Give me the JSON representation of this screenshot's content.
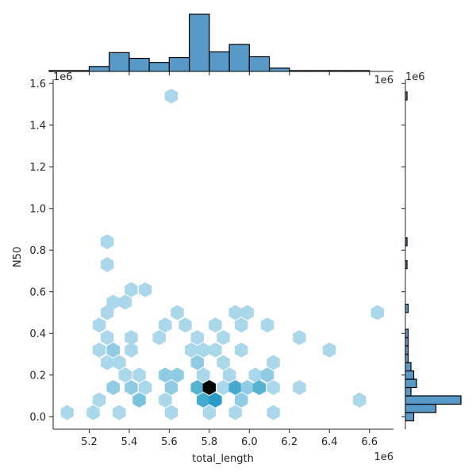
{
  "chart_data": {
    "type": "hexbin",
    "xlabel": "total_length",
    "ylabel": "N50",
    "x_offset": "1e6",
    "y_offset": "1e6",
    "xlim": [
      5.02,
      6.72
    ],
    "ylim": [
      -0.06,
      1.62
    ],
    "xticks": [
      "5.2",
      "5.4",
      "5.6",
      "5.8",
      "6.0",
      "6.2",
      "6.4",
      "6.6"
    ],
    "yticks": [
      "0.0",
      "0.2",
      "0.4",
      "0.6",
      "0.8",
      "1.0",
      "1.2",
      "1.4",
      "1.6"
    ],
    "hex_color": "#1f77b4",
    "hexbins": [
      {
        "x": 5.09,
        "y": 0.02,
        "c": 1
      },
      {
        "x": 5.22,
        "y": 0.02,
        "c": 1
      },
      {
        "x": 5.35,
        "y": 0.02,
        "c": 1
      },
      {
        "x": 5.61,
        "y": 0.02,
        "c": 1
      },
      {
        "x": 5.8,
        "y": 0.02,
        "c": 1
      },
      {
        "x": 5.93,
        "y": 0.02,
        "c": 1
      },
      {
        "x": 6.12,
        "y": 0.02,
        "c": 1
      },
      {
        "x": 5.25,
        "y": 0.08,
        "c": 1
      },
      {
        "x": 5.45,
        "y": 0.08,
        "c": 3
      },
      {
        "x": 5.58,
        "y": 0.08,
        "c": 1
      },
      {
        "x": 5.77,
        "y": 0.08,
        "c": 6
      },
      {
        "x": 5.83,
        "y": 0.08,
        "c": 8
      },
      {
        "x": 5.96,
        "y": 0.08,
        "c": 2
      },
      {
        "x": 6.55,
        "y": 0.08,
        "c": 1
      },
      {
        "x": 5.32,
        "y": 0.14,
        "c": 2
      },
      {
        "x": 5.41,
        "y": 0.14,
        "c": 2
      },
      {
        "x": 5.48,
        "y": 0.14,
        "c": 1
      },
      {
        "x": 5.61,
        "y": 0.14,
        "c": 2
      },
      {
        "x": 5.74,
        "y": 0.14,
        "c": 5
      },
      {
        "x": 5.8,
        "y": 0.14,
        "c": 12
      },
      {
        "x": 5.87,
        "y": 0.14,
        "c": 1
      },
      {
        "x": 5.93,
        "y": 0.14,
        "c": 6
      },
      {
        "x": 5.99,
        "y": 0.14,
        "c": 2
      },
      {
        "x": 6.05,
        "y": 0.14,
        "c": 5
      },
      {
        "x": 6.12,
        "y": 0.14,
        "c": 1
      },
      {
        "x": 6.25,
        "y": 0.14,
        "c": 1
      },
      {
        "x": 5.38,
        "y": 0.2,
        "c": 1
      },
      {
        "x": 5.45,
        "y": 0.2,
        "c": 1
      },
      {
        "x": 5.58,
        "y": 0.2,
        "c": 2
      },
      {
        "x": 5.64,
        "y": 0.2,
        "c": 2
      },
      {
        "x": 5.77,
        "y": 0.2,
        "c": 1
      },
      {
        "x": 5.9,
        "y": 0.2,
        "c": 1
      },
      {
        "x": 6.03,
        "y": 0.2,
        "c": 1
      },
      {
        "x": 6.09,
        "y": 0.2,
        "c": 2
      },
      {
        "x": 5.29,
        "y": 0.26,
        "c": 1
      },
      {
        "x": 5.35,
        "y": 0.26,
        "c": 1
      },
      {
        "x": 5.74,
        "y": 0.26,
        "c": 2
      },
      {
        "x": 5.87,
        "y": 0.26,
        "c": 1
      },
      {
        "x": 6.12,
        "y": 0.26,
        "c": 1
      },
      {
        "x": 5.25,
        "y": 0.32,
        "c": 1
      },
      {
        "x": 5.32,
        "y": 0.32,
        "c": 2
      },
      {
        "x": 5.41,
        "y": 0.32,
        "c": 1
      },
      {
        "x": 5.71,
        "y": 0.32,
        "c": 1
      },
      {
        "x": 5.77,
        "y": 0.32,
        "c": 1
      },
      {
        "x": 5.83,
        "y": 0.32,
        "c": 1
      },
      {
        "x": 5.96,
        "y": 0.32,
        "c": 1
      },
      {
        "x": 6.4,
        "y": 0.32,
        "c": 1
      },
      {
        "x": 5.29,
        "y": 0.38,
        "c": 1
      },
      {
        "x": 5.41,
        "y": 0.38,
        "c": 1
      },
      {
        "x": 5.55,
        "y": 0.38,
        "c": 1
      },
      {
        "x": 5.74,
        "y": 0.38,
        "c": 1
      },
      {
        "x": 5.87,
        "y": 0.38,
        "c": 1
      },
      {
        "x": 6.25,
        "y": 0.38,
        "c": 1
      },
      {
        "x": 5.25,
        "y": 0.44,
        "c": 1
      },
      {
        "x": 5.58,
        "y": 0.44,
        "c": 1
      },
      {
        "x": 5.68,
        "y": 0.44,
        "c": 1
      },
      {
        "x": 5.83,
        "y": 0.44,
        "c": 1
      },
      {
        "x": 5.96,
        "y": 0.44,
        "c": 1
      },
      {
        "x": 6.09,
        "y": 0.44,
        "c": 1
      },
      {
        "x": 5.29,
        "y": 0.5,
        "c": 1
      },
      {
        "x": 5.64,
        "y": 0.5,
        "c": 1
      },
      {
        "x": 5.93,
        "y": 0.5,
        "c": 1
      },
      {
        "x": 5.99,
        "y": 0.5,
        "c": 1
      },
      {
        "x": 6.64,
        "y": 0.5,
        "c": 1
      },
      {
        "x": 5.32,
        "y": 0.55,
        "c": 1
      },
      {
        "x": 5.38,
        "y": 0.55,
        "c": 1
      },
      {
        "x": 5.41,
        "y": 0.61,
        "c": 1
      },
      {
        "x": 5.48,
        "y": 0.61,
        "c": 1
      },
      {
        "x": 5.29,
        "y": 0.73,
        "c": 1
      },
      {
        "x": 5.29,
        "y": 0.84,
        "c": 1
      },
      {
        "x": 5.61,
        "y": 1.54,
        "c": 1
      }
    ],
    "top_histogram": {
      "bin_edges": [
        5.0,
        5.1,
        5.2,
        5.3,
        5.4,
        5.5,
        5.6,
        5.7,
        5.8,
        5.9,
        6.0,
        6.1,
        6.2,
        6.3,
        6.4,
        6.5,
        6.6
      ],
      "counts": [
        1,
        1,
        6,
        23,
        16,
        11,
        17,
        70,
        24,
        33,
        18,
        4,
        1,
        1,
        1,
        1
      ]
    },
    "right_histogram": {
      "bin_edges": [
        -0.06,
        -0.02,
        0.02,
        0.06,
        0.1,
        0.14,
        0.18,
        0.22,
        0.26,
        0.3,
        0.34,
        0.38,
        0.42,
        0.46,
        0.5,
        0.54,
        0.58,
        0.62,
        0.66,
        0.7,
        0.74,
        0.78,
        0.82,
        0.86
      ],
      "counts": [
        0,
        3,
        11,
        20,
        2,
        4,
        3,
        2,
        1,
        1,
        1,
        1,
        0,
        0,
        1,
        0,
        0,
        0,
        0,
        0,
        0,
        0,
        0
      ],
      "extra_bars": [
        {
          "y": 1.54,
          "count": 0.3
        },
        {
          "y": 0.84,
          "count": 0.3
        },
        {
          "y": 0.73,
          "count": 0.3
        }
      ]
    }
  }
}
